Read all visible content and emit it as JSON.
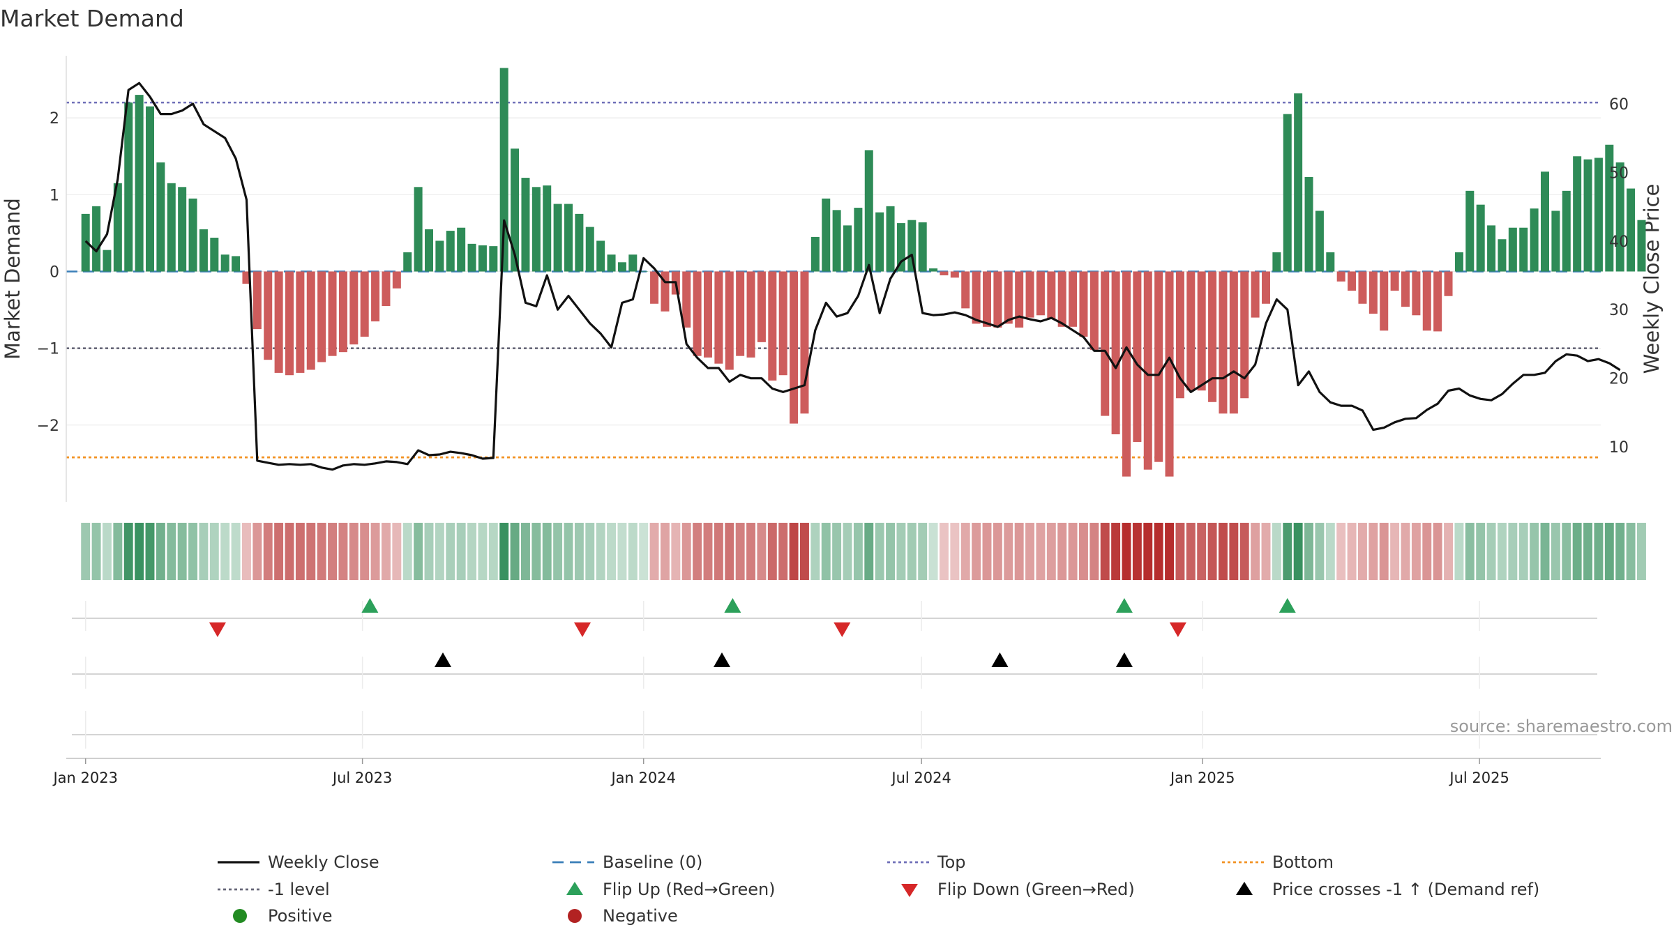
{
  "chart_data": {
    "type": "bar+line",
    "title": "Market Demand",
    "ylabel_left": "Market Demand",
    "ylabel_right": "Weekly Close Price",
    "source": "source: sharemaestro.com",
    "left_ylim": [
      -3.0,
      2.9
    ],
    "right_ylim": [
      2.0,
      68.0
    ],
    "left_ticks": [
      {
        "v": 2,
        "label": "2"
      },
      {
        "v": 1,
        "label": "1"
      },
      {
        "v": 0,
        "label": "0"
      },
      {
        "v": -1,
        "label": "−1"
      },
      {
        "v": -2,
        "label": "−2"
      }
    ],
    "right_ticks": [
      {
        "v": 60,
        "label": "60"
      },
      {
        "v": 50,
        "label": "50"
      },
      {
        "v": 40,
        "label": "40"
      },
      {
        "v": 30,
        "label": "30"
      },
      {
        "v": 20,
        "label": "20"
      },
      {
        "v": 10,
        "label": "10"
      }
    ],
    "x_range_weeks": [
      -1.8,
      141.2
    ],
    "x_ticks": [
      {
        "week": 0,
        "label": "Jan 2023"
      },
      {
        "week": 25.8,
        "label": "Jul 2023"
      },
      {
        "week": 52,
        "label": "Jan 2024"
      },
      {
        "week": 77.9,
        "label": "Jul 2024"
      },
      {
        "week": 104.1,
        "label": "Jan 2025"
      },
      {
        "week": 129.9,
        "label": "Jul 2025"
      }
    ],
    "reference_lines": {
      "top": 2.2,
      "bottom": -2.42,
      "minus_one": -1,
      "baseline": 0
    },
    "demand": [
      0.75,
      0.85,
      0.28,
      1.15,
      2.2,
      2.3,
      2.15,
      1.42,
      1.15,
      1.1,
      0.95,
      0.55,
      0.44,
      0.22,
      0.2,
      -0.16,
      -0.75,
      -1.15,
      -1.32,
      -1.35,
      -1.32,
      -1.28,
      -1.18,
      -1.1,
      -1.05,
      -0.95,
      -0.85,
      -0.65,
      -0.45,
      -0.22,
      0.25,
      1.1,
      0.55,
      0.4,
      0.53,
      0.57,
      0.36,
      0.34,
      0.33,
      2.65,
      1.6,
      1.22,
      1.1,
      1.12,
      0.88,
      0.88,
      0.75,
      0.58,
      0.4,
      0.22,
      0.12,
      0.22,
      0,
      -0.42,
      -0.52,
      -0.3,
      -0.73,
      -1.1,
      -1.12,
      -1.2,
      -1.28,
      -1.1,
      -1.12,
      -0.92,
      -1.42,
      -1.35,
      -1.98,
      -1.85,
      0.45,
      0.95,
      0.8,
      0.6,
      0.83,
      1.58,
      0.77,
      0.85,
      0.63,
      0.67,
      0.64,
      0.04,
      -0.05,
      -0.08,
      -0.48,
      -0.68,
      -0.72,
      -0.73,
      -0.68,
      -0.73,
      -0.6,
      -0.57,
      -0.62,
      -0.72,
      -0.72,
      -0.85,
      -1.02,
      -1.88,
      -2.12,
      -2.67,
      -2.22,
      -2.58,
      -2.48,
      -2.67,
      -1.65,
      -1.55,
      -1.55,
      -1.7,
      -1.85,
      -1.85,
      -1.65,
      -0.6,
      -0.42,
      0.25,
      2.05,
      2.32,
      1.23,
      0.79,
      0.25,
      -0.13,
      -0.25,
      -0.42,
      -0.55,
      -0.77,
      -0.25,
      -0.46,
      -0.57,
      -0.77,
      -0.78,
      -0.32,
      0.25,
      1.05,
      0.87,
      0.6,
      0.42,
      0.57,
      0.57,
      0.82,
      1.3,
      0.79,
      1.05,
      1.5,
      1.46,
      1.48,
      1.65,
      1.42,
      1.08,
      0.67
    ],
    "close": [
      40,
      38.5,
      41,
      49,
      62,
      63,
      61,
      58.5,
      58.5,
      59,
      60,
      57,
      56,
      55,
      52,
      46,
      8,
      7.7,
      7.4,
      7.5,
      7.4,
      7.5,
      7,
      6.7,
      7.3,
      7.5,
      7.4,
      7.6,
      7.9,
      7.8,
      7.5,
      9.5,
      8.8,
      8.9,
      9.3,
      9.1,
      8.8,
      8.3,
      8.4,
      43,
      38,
      31,
      30.5,
      35,
      30,
      32,
      30,
      28,
      26.5,
      24.5,
      31,
      31.5,
      37.5,
      36,
      34,
      34,
      25,
      23,
      21.5,
      21.5,
      19.5,
      20.5,
      20,
      20,
      18.5,
      18,
      18.5,
      19,
      27,
      31,
      29,
      29.5,
      32,
      36.5,
      29.5,
      34.5,
      37,
      38,
      29.5,
      29.2,
      29.3,
      29.6,
      29.2,
      28.5,
      28,
      27.5,
      28.5,
      29,
      28.6,
      28.3,
      28.8,
      28,
      27,
      26,
      24,
      24,
      21.5,
      24.5,
      22,
      20.5,
      20.5,
      23,
      20,
      18,
      19,
      20,
      20,
      21,
      20,
      22,
      28,
      31.5,
      30,
      19,
      21,
      18,
      16.5,
      16,
      16,
      15.3,
      12.5,
      12.8,
      13.6,
      14.1,
      14.2,
      15.4,
      16.3,
      18.2,
      18.5,
      17.5,
      17,
      16.8,
      17.7,
      19.2,
      20.5,
      20.5,
      20.8,
      22.5,
      23.5,
      23.3,
      22.5,
      22.8,
      22.2,
      21.2
    ],
    "flip_up_weeks": [
      26.5,
      60.3,
      96.8,
      112
    ],
    "flip_down_weeks": [
      12.3,
      46.3,
      70.5,
      101.8
    ],
    "price_cross_weeks": [
      33.3,
      59.3,
      85.2,
      96.8
    ],
    "legend": [
      {
        "label": "Weekly Close",
        "marker": "solid-line",
        "color": "#111111"
      },
      {
        "label": "Baseline (0)",
        "marker": "dash-line",
        "color": "#3a7fb8"
      },
      {
        "label": "Top",
        "marker": "dot-line",
        "color": "#7070b8"
      },
      {
        "label": "Bottom",
        "marker": "dot-line",
        "color": "#f29222"
      },
      {
        "label": "-1 level",
        "marker": "dot-line",
        "color": "#666677"
      },
      {
        "label": "Flip Up (Red→Green)",
        "marker": "triangle-up",
        "color": "#2ca05a"
      },
      {
        "label": "Flip Down (Green→Red)",
        "marker": "triangle-down",
        "color": "#d62728"
      },
      {
        "label": "Price crosses -1 ↑ (Demand ref)",
        "marker": "triangle-up",
        "color": "#000000"
      },
      {
        "label": "Positive",
        "marker": "circle",
        "color": "#228b22"
      },
      {
        "label": "Negative",
        "marker": "circle",
        "color": "#b22222"
      }
    ],
    "colors": {
      "positive_bar": "#2e8b57",
      "negative_bar": "#cd5c5c",
      "close_line": "#111111",
      "baseline": "#3a7fb8",
      "top": "#7070b8",
      "bottom": "#f29222",
      "minus_one": "#666677",
      "flip_up": "#2ca05a",
      "flip_down": "#d62728",
      "price_cross": "#000000",
      "heat_positive": "#2e8b57",
      "heat_negative": "#b22222"
    }
  }
}
